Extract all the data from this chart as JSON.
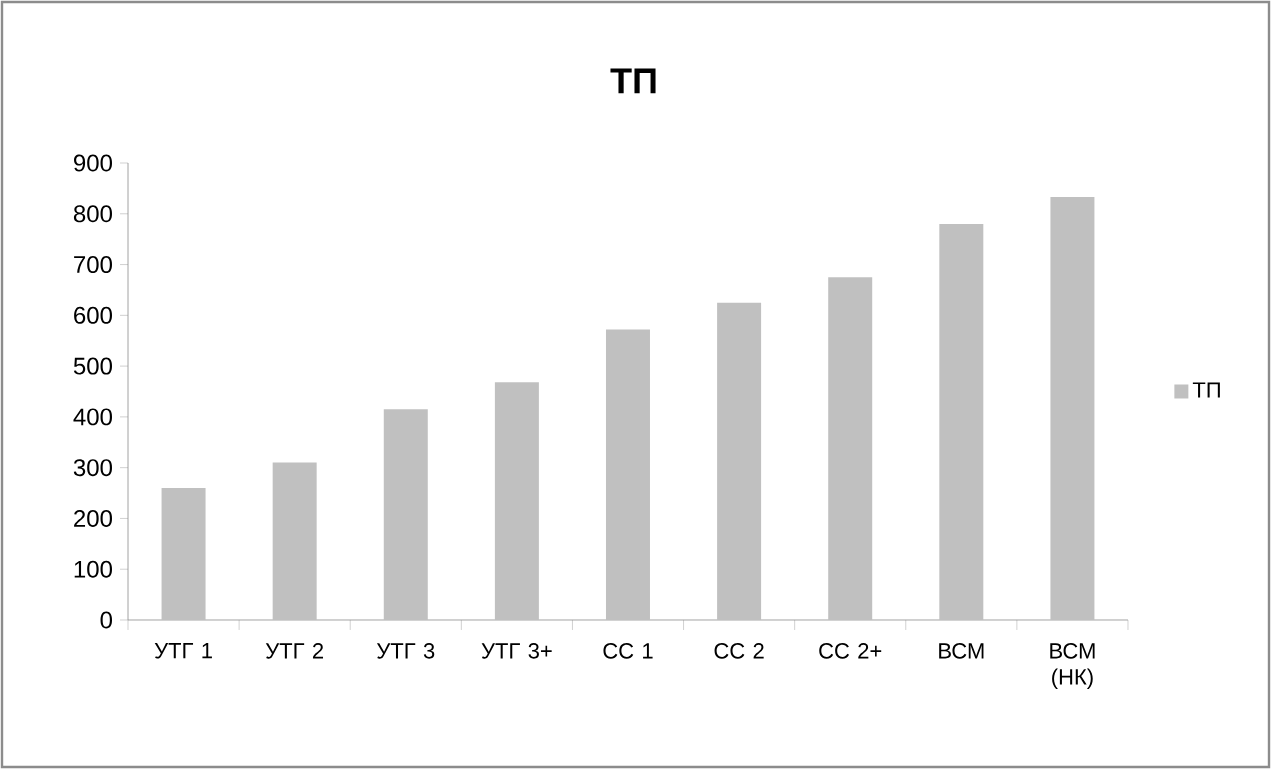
{
  "chart_data": {
    "type": "bar",
    "title": "ТП",
    "categories": [
      "УТГ 1",
      "УТГ 2",
      "УТГ 3",
      "УТГ  3+",
      "СС 1",
      "СС 2",
      "СС 2+",
      "ВСМ",
      "ВСМ (НК)"
    ],
    "series": [
      {
        "name": "ТП",
        "color": "#c0c0c0",
        "values": [
          260,
          310,
          415,
          468,
          572,
          625,
          675,
          780,
          833
        ]
      }
    ],
    "ylim": [
      0,
      900
    ],
    "yticks": [
      0,
      100,
      200,
      300,
      400,
      500,
      600,
      700,
      800,
      900
    ],
    "grid": false,
    "legend": "right"
  }
}
